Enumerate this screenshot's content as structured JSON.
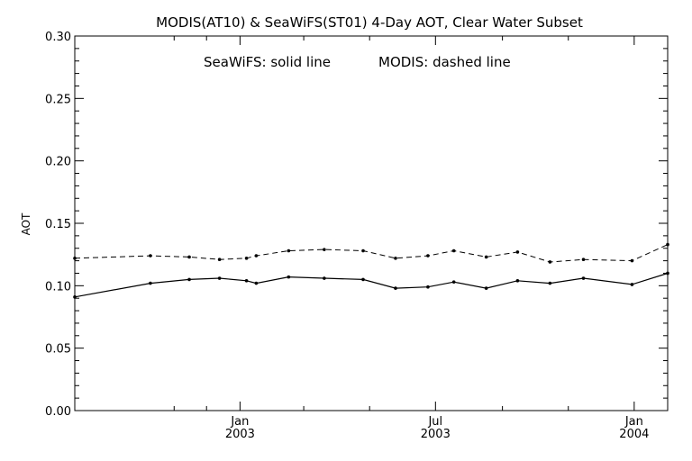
{
  "chart_data": {
    "type": "line",
    "title": "MODIS(AT10) & SeaWiFS(ST01) 4-Day AOT, Clear Water Subset",
    "annotation_left": "SeaWiFS: solid line",
    "annotation_right": "MODIS: dashed line",
    "ylabel": "AOT",
    "xlabel": "",
    "ylim": [
      0.0,
      0.3
    ],
    "xlim": [
      "2002-08-01",
      "2004-02-01"
    ],
    "grid": false,
    "y_ticks": [
      "0.00",
      "0.05",
      "0.10",
      "0.15",
      "0.20",
      "0.25",
      "0.30"
    ],
    "x_tick_labels": [
      {
        "month": "Jan",
        "year": "2003",
        "date": "2003-01-01"
      },
      {
        "month": "Jul",
        "year": "2003",
        "date": "2003-07-01"
      },
      {
        "month": "Jan",
        "year": "2004",
        "date": "2004-01-01"
      }
    ],
    "series": [
      {
        "name": "SeaWiFS",
        "style": "solid",
        "x": [
          "2002-08-01",
          "2002-10-10",
          "2002-11-15",
          "2002-12-13",
          "2003-01-07",
          "2003-01-16",
          "2003-02-15",
          "2003-03-20",
          "2003-04-25",
          "2003-05-25",
          "2003-06-24",
          "2003-07-18",
          "2003-08-17",
          "2003-09-15",
          "2003-10-15",
          "2003-11-15",
          "2003-12-30",
          "2004-02-01"
        ],
        "values": [
          0.091,
          0.102,
          0.105,
          0.106,
          0.104,
          0.102,
          0.107,
          0.106,
          0.105,
          0.098,
          0.099,
          0.103,
          0.098,
          0.104,
          0.102,
          0.106,
          0.101,
          0.11
        ]
      },
      {
        "name": "MODIS",
        "style": "dashed",
        "x": [
          "2002-08-01",
          "2002-10-10",
          "2002-11-15",
          "2002-12-13",
          "2003-01-07",
          "2003-01-16",
          "2003-02-15",
          "2003-03-20",
          "2003-04-25",
          "2003-05-25",
          "2003-06-24",
          "2003-07-18",
          "2003-08-17",
          "2003-09-15",
          "2003-10-15",
          "2003-11-15",
          "2003-12-30",
          "2004-02-01"
        ],
        "values": [
          0.122,
          0.124,
          0.123,
          0.121,
          0.122,
          0.124,
          0.128,
          0.129,
          0.128,
          0.122,
          0.124,
          0.128,
          0.123,
          0.127,
          0.119,
          0.121,
          0.12,
          0.133
        ]
      }
    ]
  }
}
